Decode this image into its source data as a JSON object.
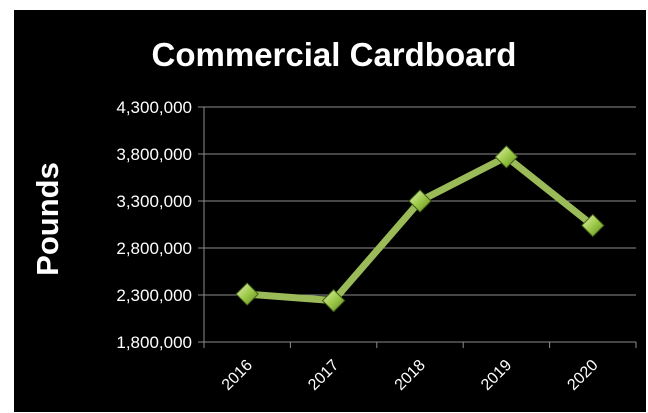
{
  "chart_data": {
    "type": "line",
    "title": "Commercial Cardboard",
    "xlabel": "",
    "ylabel": "Pounds",
    "categories": [
      "2016",
      "2017",
      "2018",
      "2019",
      "2020"
    ],
    "y_ticks": [
      "1,800,000",
      "2,300,000",
      "2,800,000",
      "3,300,000",
      "3,800,000",
      "4,300,000"
    ],
    "ylim": [
      1800000,
      4300000
    ],
    "grid": true,
    "legend": "none",
    "series": [
      {
        "values": [
          2310000,
          2240000,
          3300000,
          3770000,
          3040000
        ],
        "color": "#9bbb59",
        "marker": "diamond",
        "marker_color": "#8fbc3c"
      }
    ],
    "background": "#000000",
    "text_color": "#ffffff"
  }
}
